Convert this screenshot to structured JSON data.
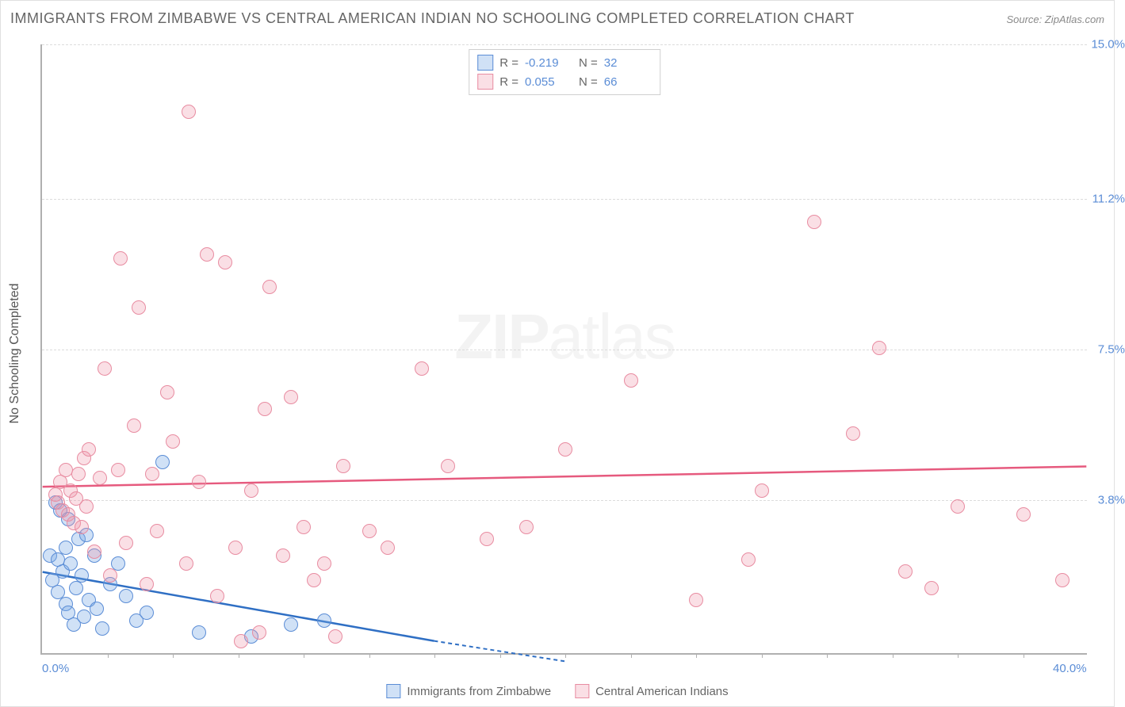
{
  "title": "IMMIGRANTS FROM ZIMBABWE VS CENTRAL AMERICAN INDIAN NO SCHOOLING COMPLETED CORRELATION CHART",
  "source_label": "Source: ZipAtlas.com",
  "y_axis_label": "No Schooling Completed",
  "watermark": {
    "part1": "ZIP",
    "part2": "atlas"
  },
  "chart": {
    "type": "scatter",
    "xlim": [
      0.0,
      40.0
    ],
    "ylim": [
      0.0,
      15.0
    ],
    "x_ticks_labels": [
      {
        "value": 0.0,
        "label": "0.0%"
      },
      {
        "value": 40.0,
        "label": "40.0%"
      }
    ],
    "x_minor_tick_step": 2.5,
    "y_grid": [
      {
        "value": 3.8,
        "label": "3.8%"
      },
      {
        "value": 7.5,
        "label": "7.5%"
      },
      {
        "value": 11.2,
        "label": "11.2%"
      },
      {
        "value": 15.0,
        "label": "15.0%"
      }
    ],
    "grid_color": "#dcdcdc",
    "axis_color": "#b0b0b0",
    "background_color": "#ffffff",
    "tick_label_color": "#5b8dd6",
    "marker_radius": 9,
    "marker_border_width": 1.2,
    "series": [
      {
        "id": "zimbabwe",
        "label": "Immigrants from Zimbabwe",
        "fill_color": "rgba(120,170,230,0.35)",
        "stroke_color": "#5b8dd6",
        "trend_color": "#2f6fc4",
        "r": -0.219,
        "n": 32,
        "trend_from": [
          0.0,
          2.0
        ],
        "trend_to_solid": [
          15.0,
          0.3
        ],
        "trend_to_dashed": [
          20.0,
          -0.2
        ],
        "points": [
          [
            0.3,
            2.4
          ],
          [
            0.4,
            1.8
          ],
          [
            0.5,
            3.7
          ],
          [
            0.6,
            2.3
          ],
          [
            0.6,
            1.5
          ],
          [
            0.7,
            3.5
          ],
          [
            0.8,
            2.0
          ],
          [
            0.9,
            1.2
          ],
          [
            0.9,
            2.6
          ],
          [
            1.0,
            3.3
          ],
          [
            1.0,
            1.0
          ],
          [
            1.1,
            2.2
          ],
          [
            1.2,
            0.7
          ],
          [
            1.3,
            1.6
          ],
          [
            1.4,
            2.8
          ],
          [
            1.5,
            1.9
          ],
          [
            1.6,
            0.9
          ],
          [
            1.7,
            2.9
          ],
          [
            1.8,
            1.3
          ],
          [
            2.0,
            2.4
          ],
          [
            2.1,
            1.1
          ],
          [
            2.3,
            0.6
          ],
          [
            2.6,
            1.7
          ],
          [
            2.9,
            2.2
          ],
          [
            3.2,
            1.4
          ],
          [
            3.6,
            0.8
          ],
          [
            4.0,
            1.0
          ],
          [
            4.6,
            4.7
          ],
          [
            6.0,
            0.5
          ],
          [
            8.0,
            0.4
          ],
          [
            9.5,
            0.7
          ],
          [
            10.8,
            0.8
          ]
        ]
      },
      {
        "id": "cai",
        "label": "Central American Indians",
        "fill_color": "rgba(240,150,170,0.30)",
        "stroke_color": "#e88ca1",
        "trend_color": "#e65a7e",
        "r": 0.055,
        "n": 66,
        "trend_from": [
          0.0,
          4.1
        ],
        "trend_to_solid": [
          40.0,
          4.6
        ],
        "trend_to_dashed": null,
        "points": [
          [
            0.5,
            3.9
          ],
          [
            0.6,
            3.7
          ],
          [
            0.7,
            4.2
          ],
          [
            0.8,
            3.5
          ],
          [
            0.9,
            4.5
          ],
          [
            1.0,
            3.4
          ],
          [
            1.1,
            4.0
          ],
          [
            1.2,
            3.2
          ],
          [
            1.3,
            3.8
          ],
          [
            1.4,
            4.4
          ],
          [
            1.5,
            3.1
          ],
          [
            1.6,
            4.8
          ],
          [
            1.7,
            3.6
          ],
          [
            1.8,
            5.0
          ],
          [
            2.0,
            2.5
          ],
          [
            2.2,
            4.3
          ],
          [
            2.4,
            7.0
          ],
          [
            2.6,
            1.9
          ],
          [
            2.9,
            4.5
          ],
          [
            3.0,
            9.7
          ],
          [
            3.2,
            2.7
          ],
          [
            3.5,
            5.6
          ],
          [
            3.7,
            8.5
          ],
          [
            4.0,
            1.7
          ],
          [
            4.2,
            4.4
          ],
          [
            4.4,
            3.0
          ],
          [
            4.8,
            6.4
          ],
          [
            5.0,
            5.2
          ],
          [
            5.5,
            2.2
          ],
          [
            5.6,
            13.3
          ],
          [
            6.0,
            4.2
          ],
          [
            6.3,
            9.8
          ],
          [
            6.7,
            1.4
          ],
          [
            7.0,
            9.6
          ],
          [
            7.4,
            2.6
          ],
          [
            7.6,
            0.3
          ],
          [
            8.0,
            4.0
          ],
          [
            8.3,
            0.5
          ],
          [
            8.5,
            6.0
          ],
          [
            8.7,
            9.0
          ],
          [
            9.2,
            2.4
          ],
          [
            9.5,
            6.3
          ],
          [
            10.0,
            3.1
          ],
          [
            10.4,
            1.8
          ],
          [
            10.8,
            2.2
          ],
          [
            11.2,
            0.4
          ],
          [
            11.5,
            4.6
          ],
          [
            12.5,
            3.0
          ],
          [
            13.2,
            2.6
          ],
          [
            14.5,
            7.0
          ],
          [
            15.5,
            4.6
          ],
          [
            17.0,
            2.8
          ],
          [
            18.5,
            3.1
          ],
          [
            20.0,
            5.0
          ],
          [
            22.5,
            6.7
          ],
          [
            25.0,
            1.3
          ],
          [
            27.0,
            2.3
          ],
          [
            27.5,
            4.0
          ],
          [
            29.5,
            10.6
          ],
          [
            31.0,
            5.4
          ],
          [
            32.0,
            7.5
          ],
          [
            33.0,
            2.0
          ],
          [
            34.0,
            1.6
          ],
          [
            35.0,
            3.6
          ],
          [
            37.5,
            3.4
          ],
          [
            39.0,
            1.8
          ]
        ]
      }
    ],
    "stats_legend": {
      "r_label": "R =",
      "n_label": "N ="
    }
  }
}
